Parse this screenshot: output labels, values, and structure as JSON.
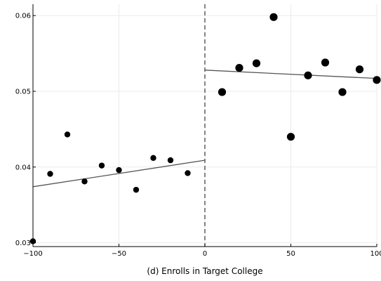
{
  "chart_data": {
    "type": "scatter",
    "title": "",
    "xlabel": "(d) Enrolls in Target College",
    "ylabel": "",
    "xlim": [
      -100,
      100
    ],
    "ylim": [
      0.0295,
      0.0615
    ],
    "xticks": [
      -100,
      -50,
      0,
      50,
      100
    ],
    "xtick_labels": [
      "−100",
      "−50",
      "0",
      "50",
      "100"
    ],
    "yticks": [
      0.03,
      0.04,
      0.05,
      0.06
    ],
    "ytick_labels": [
      "0.03",
      "0.04",
      "0.05",
      "0.06"
    ],
    "grid": true,
    "cutoff_x": 0,
    "points_left": [
      {
        "x": -100,
        "y": 0.0302
      },
      {
        "x": -90,
        "y": 0.0391
      },
      {
        "x": -80,
        "y": 0.0443
      },
      {
        "x": -70,
        "y": 0.0381
      },
      {
        "x": -60,
        "y": 0.0402
      },
      {
        "x": -50,
        "y": 0.0396
      },
      {
        "x": -40,
        "y": 0.037
      },
      {
        "x": -30,
        "y": 0.0412
      },
      {
        "x": -20,
        "y": 0.0409
      },
      {
        "x": -10,
        "y": 0.0392
      }
    ],
    "points_right": [
      {
        "x": 10,
        "y": 0.0499
      },
      {
        "x": 20,
        "y": 0.0531
      },
      {
        "x": 30,
        "y": 0.0537
      },
      {
        "x": 40,
        "y": 0.0598
      },
      {
        "x": 50,
        "y": 0.044
      },
      {
        "x": 60,
        "y": 0.0521
      },
      {
        "x": 70,
        "y": 0.0538
      },
      {
        "x": 80,
        "y": 0.0499
      },
      {
        "x": 90,
        "y": 0.0529
      },
      {
        "x": 100,
        "y": 0.0515
      }
    ],
    "fit_left": [
      {
        "x": -100,
        "y": 0.0374
      },
      {
        "x": 0,
        "y": 0.0409
      }
    ],
    "fit_right": [
      {
        "x": 0,
        "y": 0.0528
      },
      {
        "x": 100,
        "y": 0.0517
      }
    ]
  }
}
